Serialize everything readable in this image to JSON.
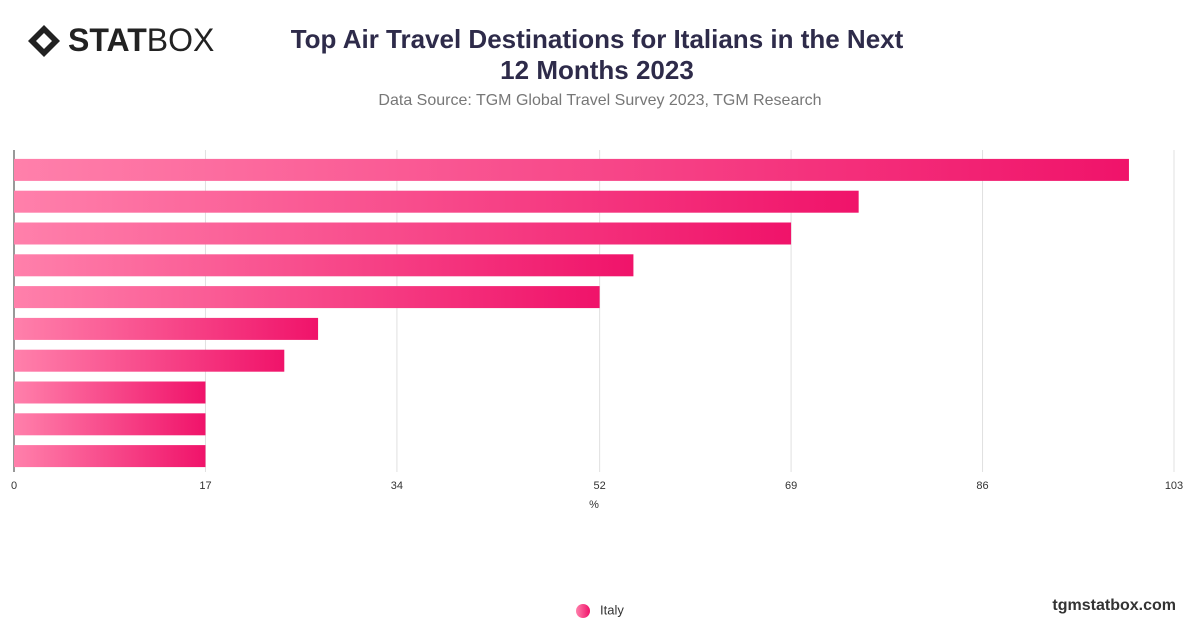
{
  "logo": {
    "bold": "STAT",
    "light": "BOX"
  },
  "footer": "tgmstatbox.com",
  "chart_data": {
    "type": "bar",
    "orientation": "horizontal",
    "title": "Top Air Travel Destinations for Italians in the Next 12 Months 2023",
    "subtitle": "Data Source: TGM Global Travel Survey 2023, TGM Research",
    "xlabel": "%",
    "categories": [
      null,
      null,
      null,
      null,
      null,
      null,
      null,
      null,
      null,
      null
    ],
    "series": [
      {
        "name": "Italy",
        "color": "#f0136a",
        "gradient_start": "#ff80ab",
        "values": [
          99,
          75,
          69,
          55,
          52,
          27,
          24,
          17,
          17,
          17
        ]
      }
    ],
    "xlim": [
      0,
      103
    ],
    "xticks": [
      0,
      17,
      34,
      52,
      69,
      86,
      103
    ],
    "grid": true,
    "legend": "bottom"
  }
}
